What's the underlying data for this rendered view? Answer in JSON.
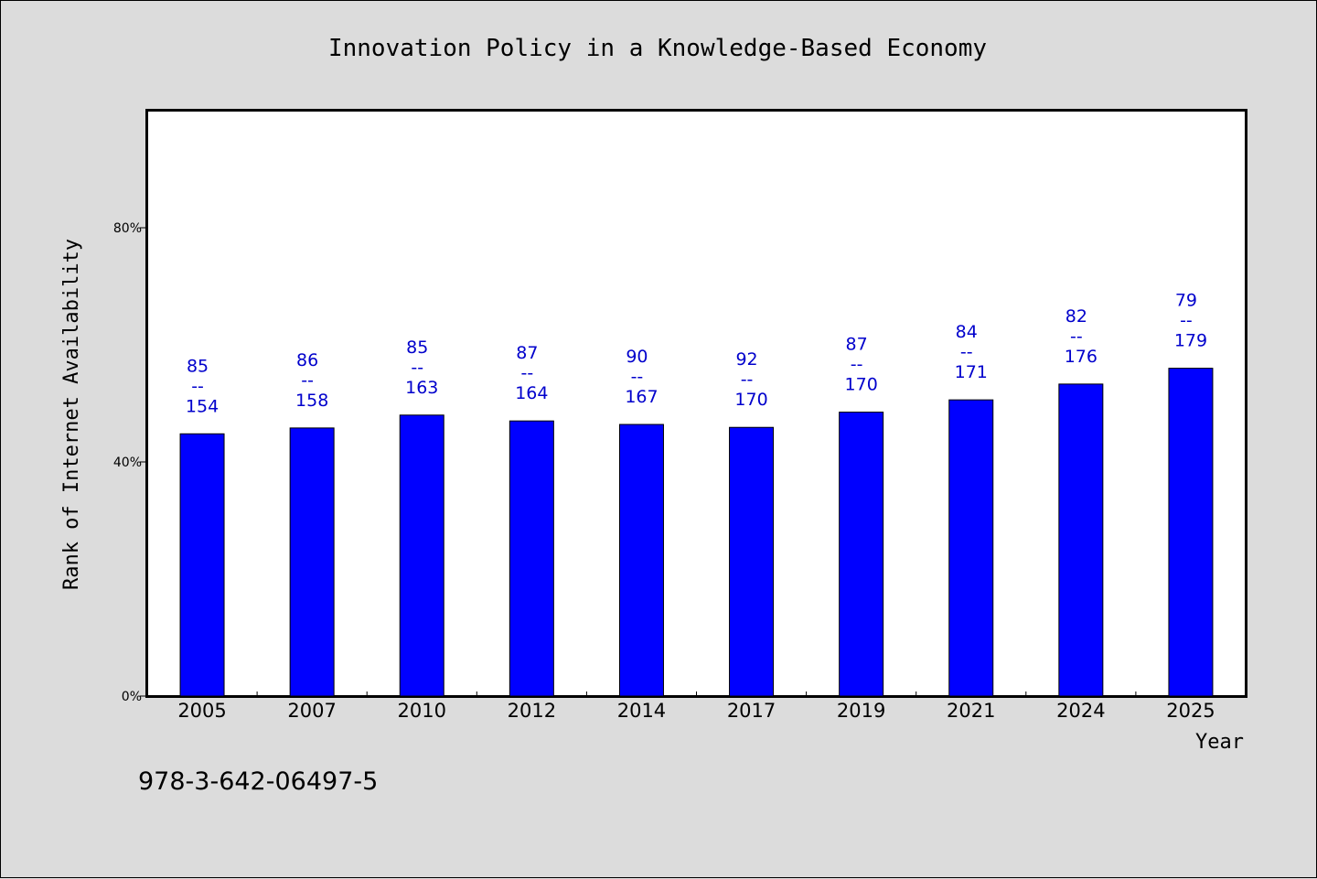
{
  "chart_data": {
    "type": "bar",
    "title": "Innovation Policy in a Knowledge-Based Economy",
    "xlabel": "Year",
    "ylabel": "Rank of Internet Availability",
    "ylim": [
      0,
      100
    ],
    "yticks": [
      0,
      40,
      80
    ],
    "ytick_labels": [
      "0%",
      "40%",
      "80%"
    ],
    "categories": [
      "2005",
      "2007",
      "2010",
      "2012",
      "2014",
      "2017",
      "2019",
      "2021",
      "2024",
      "2025"
    ],
    "values": [
      44.8,
      45.8,
      48.0,
      47.0,
      46.4,
      45.9,
      48.5,
      50.6,
      53.3,
      56.0
    ],
    "labels_top": [
      "85",
      "86",
      "85",
      "87",
      "90",
      "92",
      "87",
      "84",
      "82",
      "79"
    ],
    "labels_sep": "--",
    "labels_bottom": [
      "154",
      "158",
      "163",
      "164",
      "167",
      "170",
      "170",
      "171",
      "176",
      "179"
    ],
    "bar_color": "#0000ff",
    "label_color": "#0000cc",
    "grid": false
  },
  "footer": {
    "isbn": "978-3-642-06497-5"
  }
}
